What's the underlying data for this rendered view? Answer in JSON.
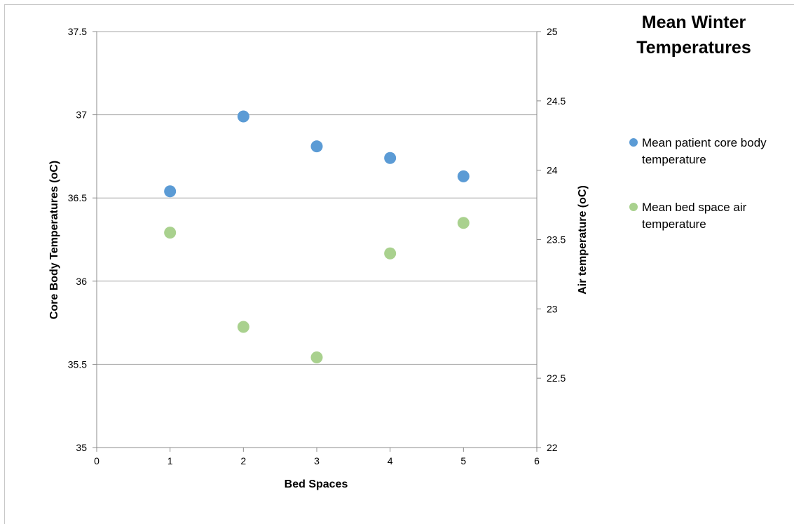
{
  "chart_data": {
    "type": "scatter",
    "title": "Mean Winter Temperatures",
    "xlabel": "Bed Spaces",
    "ylabel": "Core Body Temperatures (oC)",
    "y2label": "Air temperature (oC)",
    "xlim": [
      0,
      6
    ],
    "ylim": [
      35,
      37.5
    ],
    "y2lim": [
      22,
      25
    ],
    "x_ticks": [
      "0",
      "1",
      "2",
      "3",
      "4",
      "5",
      "6"
    ],
    "y_ticks": [
      "35",
      "35.5",
      "36",
      "36.5",
      "37",
      "37.5"
    ],
    "y2_ticks": [
      "22",
      "22.5",
      "23",
      "23.5",
      "24",
      "24.5",
      "25"
    ],
    "grid": "horizontal",
    "legend_position": "right",
    "series": [
      {
        "name": "Mean patient core body temperature",
        "axis": "left",
        "color": "#5b9bd5",
        "points": [
          {
            "x": 1,
            "y": 36.54
          },
          {
            "x": 2,
            "y": 36.99
          },
          {
            "x": 3,
            "y": 36.81
          },
          {
            "x": 4,
            "y": 36.74
          },
          {
            "x": 5,
            "y": 36.63
          }
        ]
      },
      {
        "name": "Mean bed space air temperature",
        "axis": "right",
        "color": "#a9d18e",
        "points": [
          {
            "x": 1,
            "y": 23.55
          },
          {
            "x": 2,
            "y": 22.87
          },
          {
            "x": 3,
            "y": 22.65
          },
          {
            "x": 4,
            "y": 23.4
          },
          {
            "x": 5,
            "y": 23.62
          }
        ]
      }
    ]
  },
  "legend": {
    "items": [
      {
        "label_line1": "Mean patient core body",
        "label_line2": "temperature",
        "color": "#5b9bd5"
      },
      {
        "label_line1": "Mean bed space air",
        "label_line2": "temperature",
        "color": "#a9d18e"
      }
    ]
  }
}
